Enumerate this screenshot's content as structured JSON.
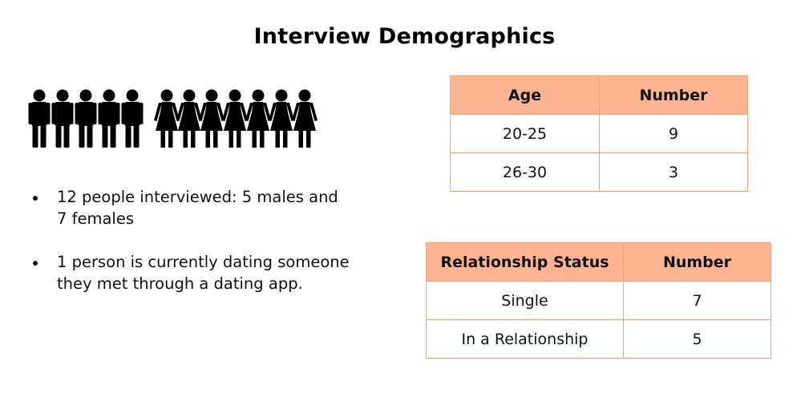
{
  "title": "Interview Demographics",
  "people_graphic": {
    "males": 5,
    "females": 7,
    "icon_color": "#000000"
  },
  "bullets": [
    "12 people interviewed: 5 males and 7 females",
    "1 person is currently dating someone they met through a dating app."
  ],
  "age_table": {
    "headers": [
      "Age",
      "Number"
    ],
    "rows": [
      [
        "20-25",
        "9"
      ],
      [
        "26-30",
        "3"
      ]
    ]
  },
  "relationship_table": {
    "headers": [
      "Relationship Status",
      "Number"
    ],
    "rows": [
      [
        "Single",
        "7"
      ],
      [
        "In a Relationship",
        "5"
      ]
    ]
  },
  "colors": {
    "header_fill": "#fcb493",
    "border": "#f4a07c",
    "text": "#111111"
  }
}
